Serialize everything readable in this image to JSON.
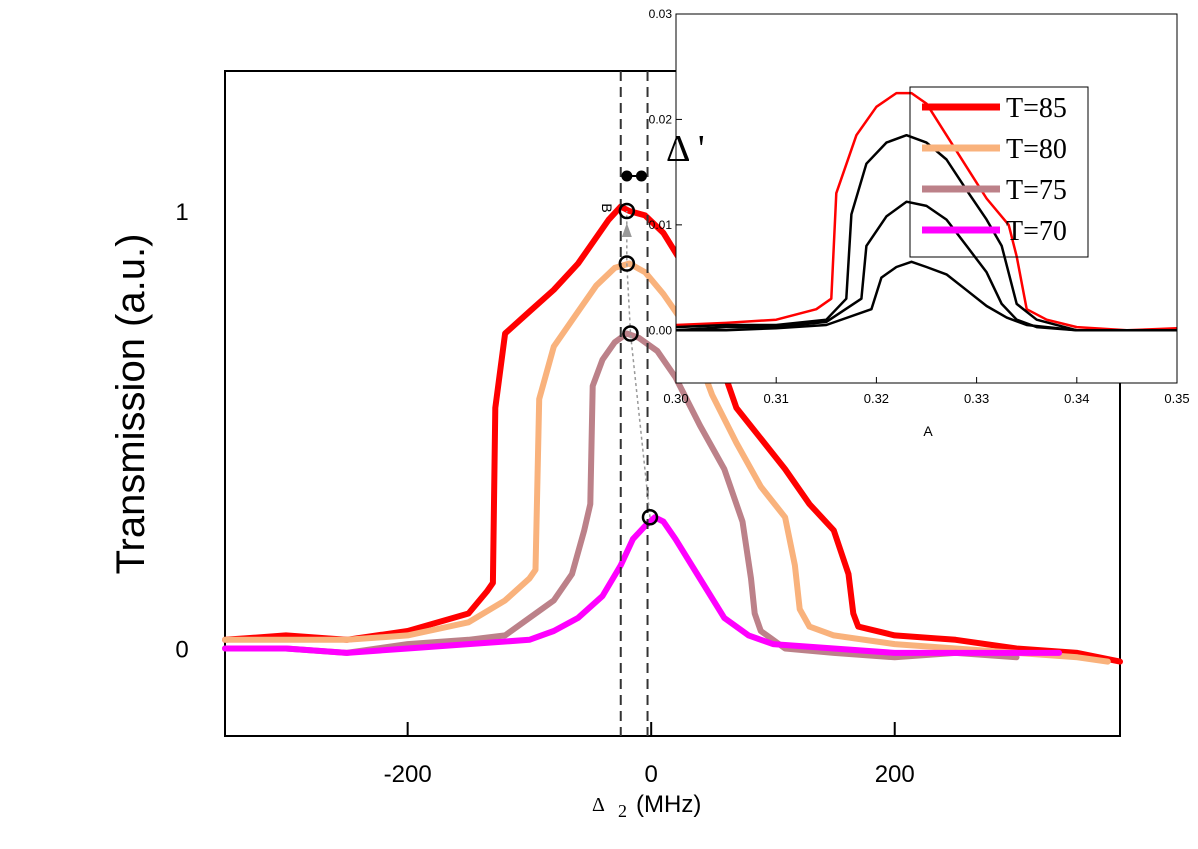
{
  "chart_data": [
    {
      "type": "line",
      "ylabel": "Transmission (a.u.)",
      "xlabel_symbol": "Δ",
      "xlabel_sub": "2",
      "xlabel_unit": "(MHz)",
      "xlim": [
        -350,
        385
      ],
      "ylim": [
        -0.2,
        1.32
      ],
      "xticks": [
        -200,
        0,
        200
      ],
      "xtick_labels": [
        "-200",
        "0",
        "200"
      ],
      "yticks": [
        0,
        1
      ],
      "ytick_labels": [
        "0",
        "1"
      ],
      "dashed_lines_x": [
        -25,
        -3
      ],
      "delta_prime_label": "Δ '",
      "small_label_b": "B",
      "legend": [
        "T=85",
        "T=80",
        "T=75",
        "T=70"
      ],
      "series": [
        {
          "name": "T=85",
          "color": "#ff0000",
          "x": [
            -350,
            -300,
            -250,
            -200,
            -150,
            -135,
            -130,
            -128,
            -120,
            -100,
            -80,
            -60,
            -45,
            -35,
            -25,
            -18,
            -5,
            10,
            30,
            50,
            70,
            90,
            110,
            130,
            150,
            162,
            166,
            170,
            200,
            250,
            300,
            350,
            385
          ],
          "y": [
            0.02,
            0.03,
            0.02,
            0.04,
            0.08,
            0.13,
            0.15,
            0.55,
            0.72,
            0.77,
            0.82,
            0.88,
            0.94,
            0.98,
            1.01,
            1.0,
            0.99,
            0.95,
            0.86,
            0.71,
            0.55,
            0.48,
            0.41,
            0.33,
            0.27,
            0.17,
            0.08,
            0.05,
            0.03,
            0.02,
            0.0,
            -0.01,
            -0.03
          ]
        },
        {
          "name": "T=80",
          "color": "#f9b27c",
          "x": [
            -350,
            -300,
            -250,
            -200,
            -150,
            -120,
            -100,
            -95,
            -92,
            -80,
            -60,
            -45,
            -30,
            -18,
            -5,
            10,
            30,
            50,
            70,
            90,
            110,
            118,
            122,
            130,
            150,
            200,
            250,
            300,
            350,
            375
          ],
          "y": [
            0.02,
            0.02,
            0.02,
            0.03,
            0.06,
            0.11,
            0.16,
            0.18,
            0.57,
            0.69,
            0.77,
            0.83,
            0.87,
            0.88,
            0.86,
            0.81,
            0.73,
            0.58,
            0.47,
            0.37,
            0.3,
            0.19,
            0.09,
            0.05,
            0.03,
            0.01,
            0.0,
            -0.01,
            -0.02,
            -0.03
          ]
        },
        {
          "name": "T=75",
          "color": "#bc8189",
          "x": [
            -350,
            -300,
            -250,
            -200,
            -150,
            -120,
            -100,
            -80,
            -65,
            -55,
            -50,
            -48,
            -40,
            -30,
            -20,
            -10,
            5,
            20,
            40,
            60,
            75,
            82,
            85,
            90,
            110,
            150,
            200,
            250,
            300
          ],
          "y": [
            0.0,
            0.0,
            -0.01,
            0.01,
            0.02,
            0.03,
            0.07,
            0.11,
            0.17,
            0.27,
            0.33,
            0.6,
            0.66,
            0.7,
            0.72,
            0.71,
            0.68,
            0.62,
            0.51,
            0.41,
            0.29,
            0.16,
            0.08,
            0.04,
            0.0,
            -0.01,
            -0.02,
            -0.01,
            -0.02
          ]
        },
        {
          "name": "T=70",
          "color": "#ff00ff",
          "x": [
            -350,
            -300,
            -250,
            -200,
            -150,
            -100,
            -80,
            -60,
            -40,
            -25,
            -15,
            -5,
            3,
            10,
            20,
            40,
            60,
            80,
            100,
            150,
            200,
            250,
            300,
            335
          ],
          "y": [
            0.0,
            0.0,
            -0.01,
            0.0,
            0.01,
            0.02,
            0.04,
            0.07,
            0.12,
            0.19,
            0.25,
            0.28,
            0.3,
            0.29,
            0.25,
            0.16,
            0.07,
            0.03,
            0.01,
            0.0,
            -0.01,
            -0.01,
            -0.01,
            -0.01
          ]
        }
      ],
      "markers": {
        "filled": [
          [
            -20,
            1.08
          ],
          [
            -8,
            1.08
          ]
        ],
        "open": [
          [
            -20,
            1.0
          ],
          [
            -20,
            0.88
          ],
          [
            -17,
            0.72
          ],
          [
            -1,
            0.3
          ]
        ]
      }
    },
    {
      "type": "line",
      "inset": true,
      "xlabel": "A",
      "ylabel": "B",
      "xlim": [
        0.3,
        0.35
      ],
      "ylim": [
        -0.005,
        0.03
      ],
      "xticks": [
        0.3,
        0.31,
        0.32,
        0.33,
        0.34,
        0.35
      ],
      "xtick_labels": [
        "0.30",
        "0.31",
        "0.32",
        "0.33",
        "0.34",
        "0.35"
      ],
      "yticks": [
        0.0,
        0.01,
        0.02,
        0.03
      ],
      "ytick_labels": [
        "0.00",
        "0.01",
        "0.02",
        "0.03"
      ],
      "series": [
        {
          "name": "red",
          "color": "#ff0000",
          "x": [
            0.3,
            0.305,
            0.31,
            0.314,
            0.3155,
            0.316,
            0.318,
            0.32,
            0.322,
            0.3235,
            0.325,
            0.327,
            0.329,
            0.331,
            0.3332,
            0.334,
            0.335,
            0.337,
            0.34,
            0.345,
            0.35
          ],
          "y": [
            0.0005,
            0.0007,
            0.001,
            0.002,
            0.003,
            0.013,
            0.0185,
            0.0212,
            0.0225,
            0.0225,
            0.0215,
            0.0185,
            0.0155,
            0.0125,
            0.01,
            0.007,
            0.002,
            0.001,
            0.0003,
            0.0,
            0.0002
          ]
        },
        {
          "name": "black-1",
          "color": "#000000",
          "x": [
            0.3,
            0.305,
            0.31,
            0.315,
            0.317,
            0.3175,
            0.319,
            0.321,
            0.323,
            0.325,
            0.327,
            0.329,
            0.331,
            0.3325,
            0.334,
            0.336,
            0.34,
            0.345,
            0.35
          ],
          "y": [
            0.0003,
            0.0005,
            0.0005,
            0.001,
            0.003,
            0.011,
            0.0158,
            0.0178,
            0.0185,
            0.0178,
            0.0162,
            0.0133,
            0.0105,
            0.008,
            0.0025,
            0.001,
            0.0,
            0.0,
            0.0
          ]
        },
        {
          "name": "black-2",
          "color": "#000000",
          "x": [
            0.3,
            0.305,
            0.31,
            0.315,
            0.3185,
            0.319,
            0.321,
            0.323,
            0.325,
            0.327,
            0.329,
            0.331,
            0.3325,
            0.334,
            0.336,
            0.34,
            0.35
          ],
          "y": [
            0.0,
            0.0003,
            0.0003,
            0.0008,
            0.003,
            0.008,
            0.0108,
            0.0122,
            0.0118,
            0.0105,
            0.008,
            0.0055,
            0.0025,
            0.001,
            0.0003,
            0.0,
            0.0
          ]
        },
        {
          "name": "black-3",
          "color": "#000000",
          "x": [
            0.3,
            0.305,
            0.31,
            0.315,
            0.3195,
            0.3205,
            0.322,
            0.3235,
            0.325,
            0.327,
            0.329,
            0.331,
            0.333,
            0.335,
            0.34,
            0.35
          ],
          "y": [
            0.0,
            0.0,
            0.0002,
            0.0005,
            0.002,
            0.005,
            0.006,
            0.0065,
            0.006,
            0.0053,
            0.0038,
            0.0023,
            0.0012,
            0.0005,
            0.0,
            0.0
          ]
        }
      ]
    }
  ]
}
